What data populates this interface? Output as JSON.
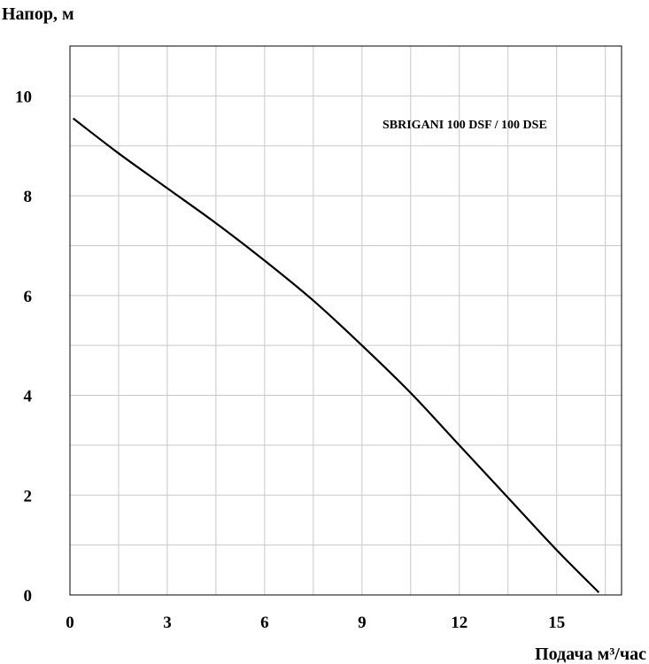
{
  "chart_data": {
    "type": "line",
    "ylabel": "Напор, м",
    "xlabel": "Подача  м³/час",
    "annotation": "SBRIGANI 100 DSF / 100 DSE",
    "xlim": [
      0,
      17
    ],
    "ylim": [
      0,
      11
    ],
    "xticks": [
      0,
      3,
      6,
      9,
      12,
      15
    ],
    "yticks": [
      0,
      2,
      4,
      6,
      8,
      10
    ],
    "x_grid_step": 1.5,
    "y_grid_step": 1,
    "grid": true,
    "series": [
      {
        "x": [
          0.1,
          1.5,
          3,
          4.5,
          6,
          7.5,
          9,
          10.5,
          12,
          13.5,
          15,
          16.3
        ],
        "y": [
          9.55,
          8.85,
          8.15,
          7.45,
          6.7,
          5.9,
          5.0,
          4.05,
          3.0,
          1.95,
          0.9,
          0.05
        ]
      }
    ]
  }
}
